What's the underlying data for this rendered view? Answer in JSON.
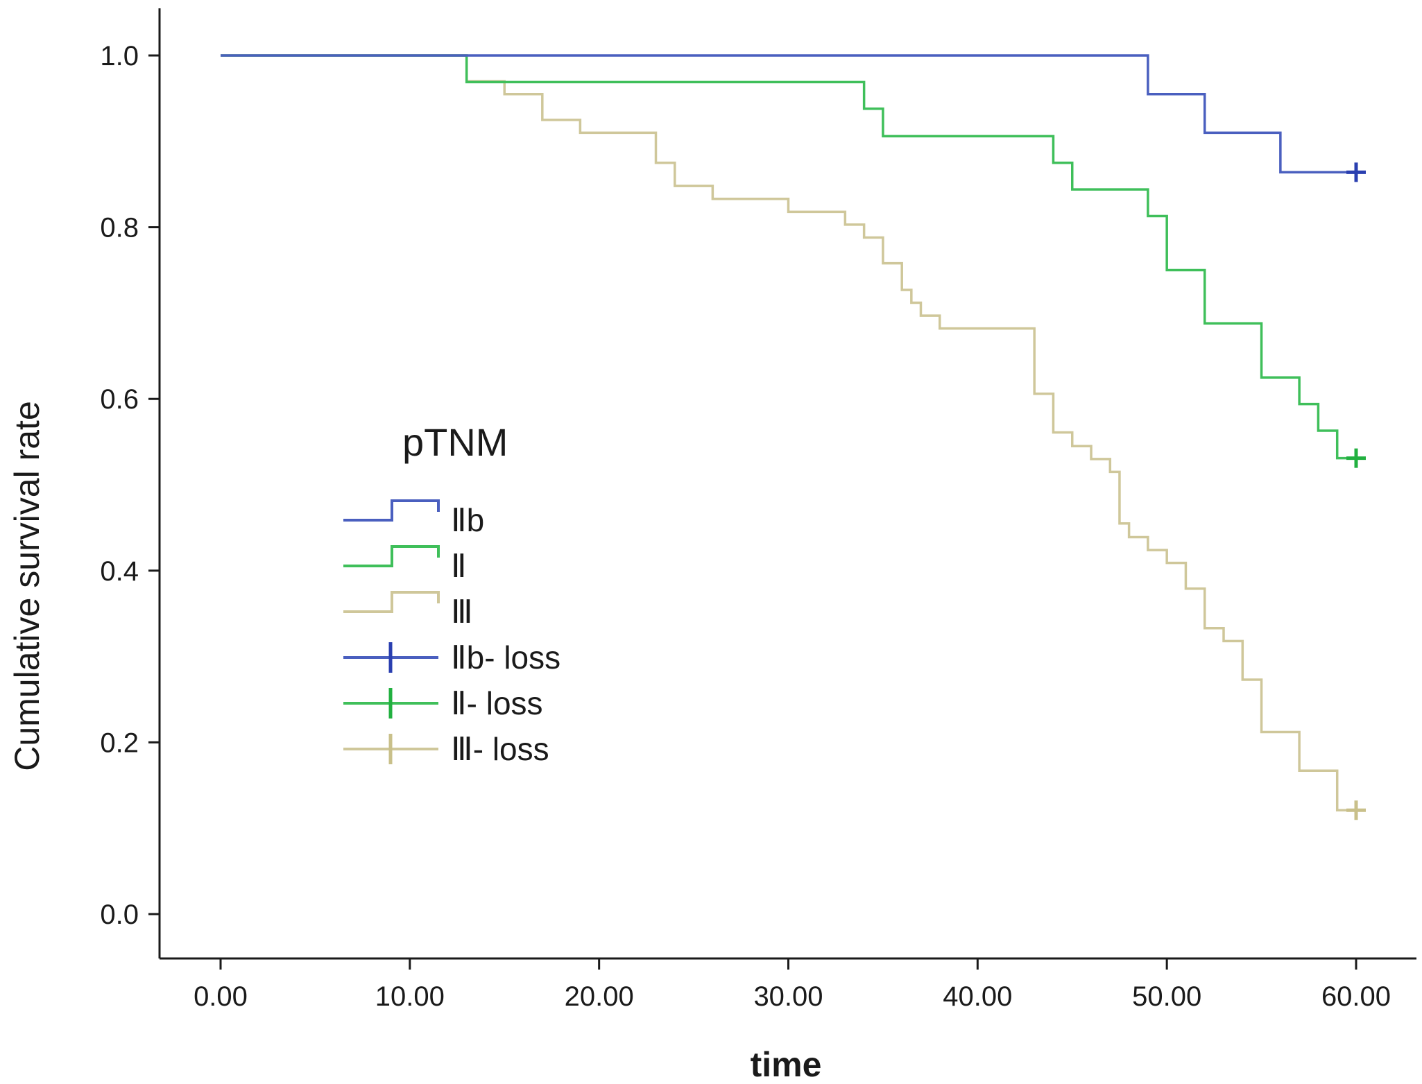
{
  "chart_data": {
    "type": "line",
    "subtype": "kaplan-meier-step",
    "title": "",
    "xlabel": "time",
    "ylabel": "Cumulative survival rate",
    "xlim": [
      0,
      60
    ],
    "ylim": [
      0,
      1
    ],
    "x_ticks": [
      "0.00",
      "10.00",
      "20.00",
      "30.00",
      "40.00",
      "50.00",
      "60.00"
    ],
    "y_ticks": [
      "0.0",
      "0.2",
      "0.4",
      "0.6",
      "0.8",
      "1.0"
    ],
    "legend_title": "pTNM",
    "legend_position": "center-left",
    "series": [
      {
        "name": "Ⅱb",
        "censor_label": "Ⅱb- loss",
        "color": "#4a5fbf",
        "censor_color": "#2a3fb0",
        "steps": [
          [
            0,
            1.0
          ],
          [
            49,
            0.955
          ],
          [
            52,
            0.91
          ],
          [
            56,
            0.864
          ]
        ],
        "end_time": 60,
        "censored_at": [
          [
            60,
            0.864
          ]
        ]
      },
      {
        "name": "Ⅱ",
        "censor_label": "Ⅱ- loss",
        "color": "#3fbf5a",
        "censor_color": "#22b040",
        "steps": [
          [
            0,
            1.0
          ],
          [
            13,
            0.969
          ],
          [
            34,
            0.938
          ],
          [
            35,
            0.906
          ],
          [
            44,
            0.875
          ],
          [
            45,
            0.844
          ],
          [
            49,
            0.813
          ],
          [
            50,
            0.75
          ],
          [
            52,
            0.688
          ],
          [
            55,
            0.625
          ],
          [
            57,
            0.594
          ],
          [
            58,
            0.563
          ],
          [
            59,
            0.531
          ]
        ],
        "end_time": 60,
        "censored_at": [
          [
            60,
            0.531
          ]
        ]
      },
      {
        "name": "Ⅲ",
        "censor_label": "Ⅲ- loss",
        "color": "#cfc79a",
        "censor_color": "#c9c08a",
        "steps": [
          [
            0,
            1.0
          ],
          [
            13,
            0.97
          ],
          [
            15,
            0.955
          ],
          [
            17,
            0.925
          ],
          [
            19,
            0.91
          ],
          [
            23,
            0.875
          ],
          [
            24,
            0.848
          ],
          [
            26,
            0.833
          ],
          [
            30,
            0.818
          ],
          [
            33,
            0.803
          ],
          [
            34,
            0.788
          ],
          [
            35,
            0.758
          ],
          [
            36,
            0.727
          ],
          [
            36.5,
            0.712
          ],
          [
            37,
            0.697
          ],
          [
            38,
            0.682
          ],
          [
            43,
            0.606
          ],
          [
            44,
            0.561
          ],
          [
            45,
            0.545
          ],
          [
            46,
            0.53
          ],
          [
            47,
            0.515
          ],
          [
            47.5,
            0.455
          ],
          [
            48,
            0.439
          ],
          [
            49,
            0.424
          ],
          [
            50,
            0.409
          ],
          [
            51,
            0.379
          ],
          [
            52,
            0.333
          ],
          [
            53,
            0.318
          ],
          [
            54,
            0.273
          ],
          [
            55,
            0.212
          ],
          [
            57,
            0.167
          ],
          [
            59,
            0.121
          ]
        ],
        "end_time": 60,
        "censored_at": [
          [
            60,
            0.121
          ]
        ]
      }
    ]
  }
}
